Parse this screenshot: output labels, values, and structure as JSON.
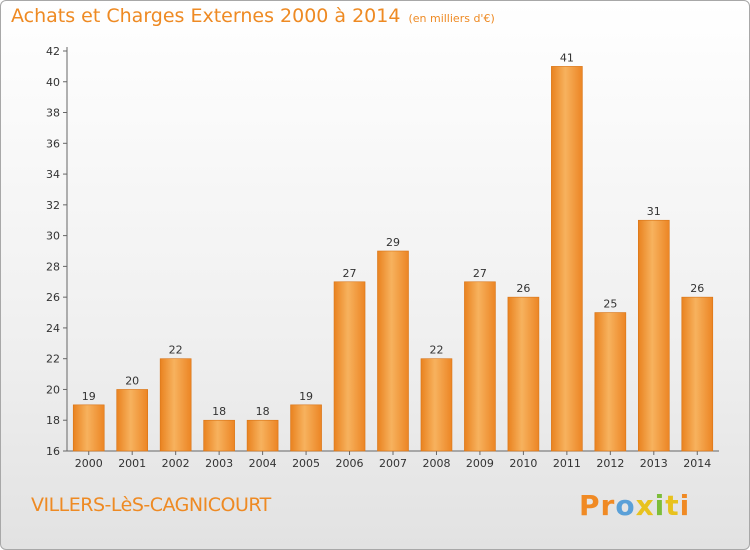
{
  "chart_data": {
    "type": "bar",
    "title": "Achats et Charges Externes 2000 à 2014",
    "unit_note": "(en milliers d'€)",
    "categories": [
      "2000",
      "2001",
      "2002",
      "2003",
      "2004",
      "2005",
      "2006",
      "2007",
      "2008",
      "2009",
      "2010",
      "2011",
      "2012",
      "2013",
      "2014"
    ],
    "values": [
      19,
      20,
      22,
      18,
      18,
      19,
      27,
      29,
      22,
      27,
      26,
      41,
      25,
      31,
      26
    ],
    "ylim": [
      16,
      42
    ],
    "yticks": [
      16,
      18,
      20,
      22,
      24,
      26,
      28,
      30,
      32,
      34,
      36,
      38,
      40,
      42
    ],
    "grid": false,
    "bar_color": "#f08a24",
    "bar_color_light": "#f7b25e"
  },
  "footer": {
    "commune": "VILLERS-LèS-CAGNICOURT",
    "logo_letters": [
      "P",
      "r",
      "o",
      "x",
      "i",
      "t",
      "i"
    ],
    "logo_colors": [
      "#f08a24",
      "#f08a24",
      "#5aa0d8",
      "#e8c21e",
      "#7dbd3a",
      "#e8c21e",
      "#f08a24"
    ]
  }
}
